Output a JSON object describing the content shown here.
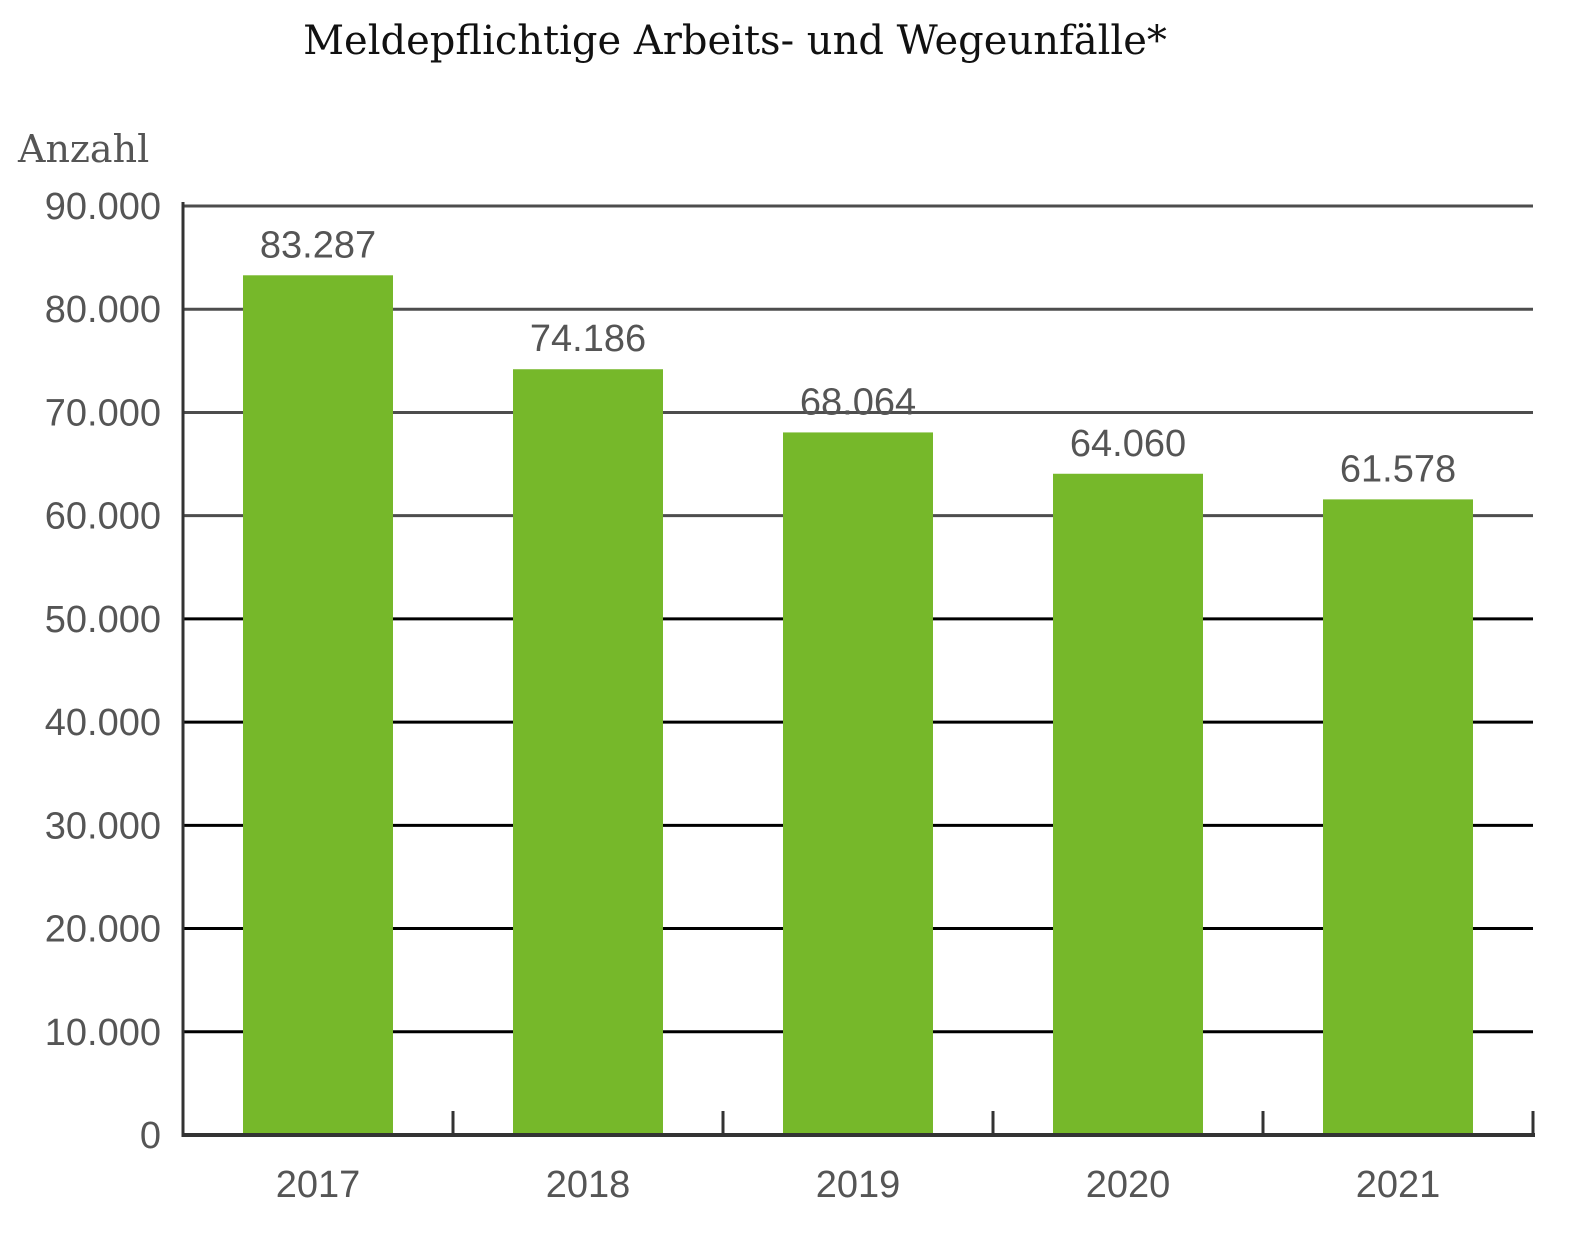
{
  "chart_data": {
    "type": "bar",
    "title": "Meldepflichtige Arbeits- und Wegeunfälle*",
    "xlabel": "",
    "ylabel": "Anzahl",
    "categories": [
      "2017",
      "2018",
      "2019",
      "2020",
      "2021"
    ],
    "values": [
      83287,
      74186,
      68064,
      64060,
      61578
    ],
    "value_labels": [
      "83.287",
      "74.186",
      "68.064",
      "64.060",
      "61.578"
    ],
    "ylim": [
      0,
      90000
    ],
    "yticks": [
      0,
      10000,
      20000,
      30000,
      40000,
      50000,
      60000,
      70000,
      80000,
      90000
    ],
    "ytick_labels": [
      "0",
      "10.000",
      "20.000",
      "30.000",
      "40.000",
      "50.000",
      "60.000",
      "70.000",
      "80.000",
      "90.000"
    ],
    "grid": true,
    "bar_color": "#76b82a"
  }
}
